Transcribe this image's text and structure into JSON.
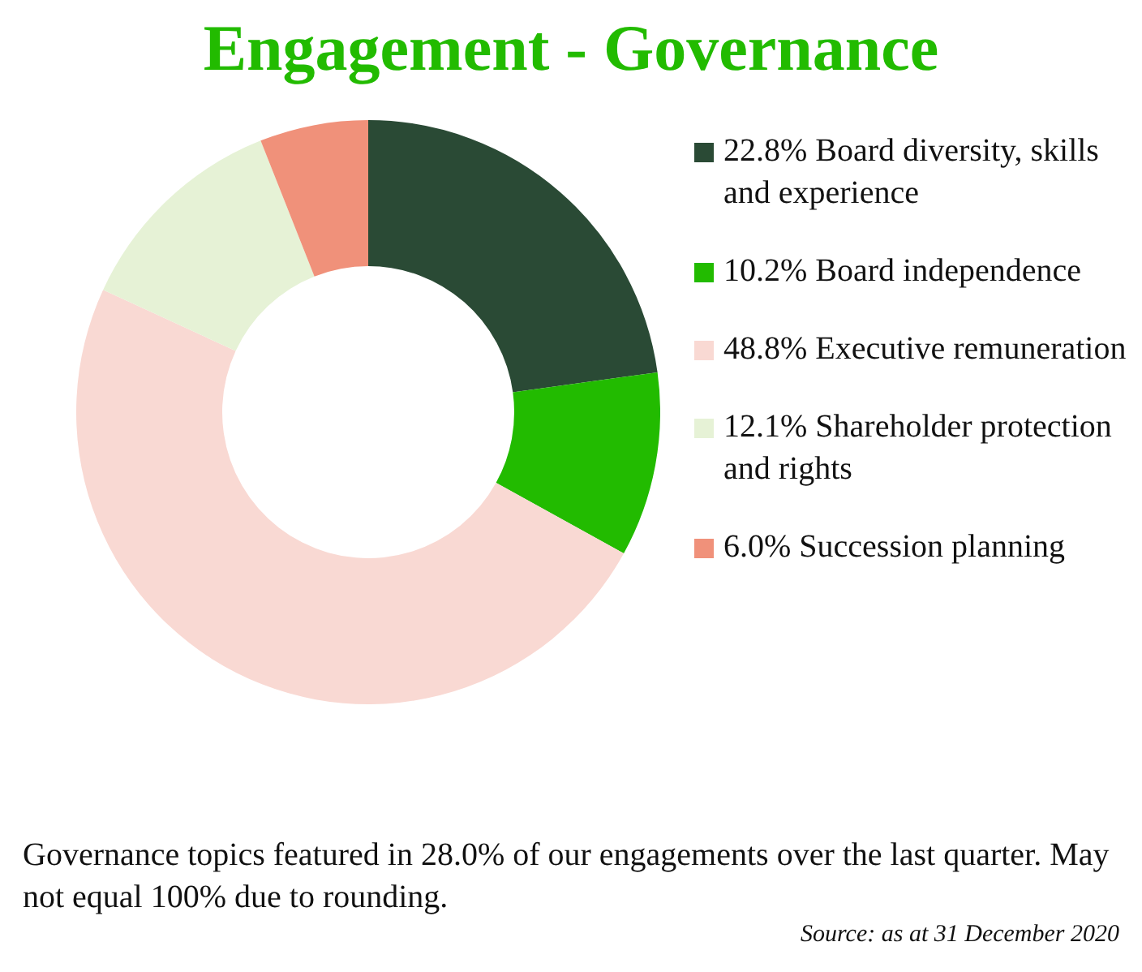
{
  "chart_data": {
    "type": "donut",
    "title": "Engagement - Governance",
    "categories": [
      "Board diversity, skills and experience",
      "Board independence",
      "Executive remuneration",
      "Shareholder protection and rights",
      "Succession planning"
    ],
    "values": [
      22.8,
      10.2,
      48.8,
      12.1,
      6.0
    ],
    "value_labels": [
      "22.8%",
      "10.2%",
      "48.8%",
      "12.1%",
      "6.0%"
    ],
    "colors": [
      "#2a4a35",
      "#22bb00",
      "#f9d9d3",
      "#e6f2d6",
      "#f0917a"
    ],
    "legend": "right",
    "annotations": [
      "Governance topics featured in 28.0% of our engagements over the last quarter. May not equal 100% due to rounding.",
      "Source: as at 31 December 2020"
    ]
  }
}
